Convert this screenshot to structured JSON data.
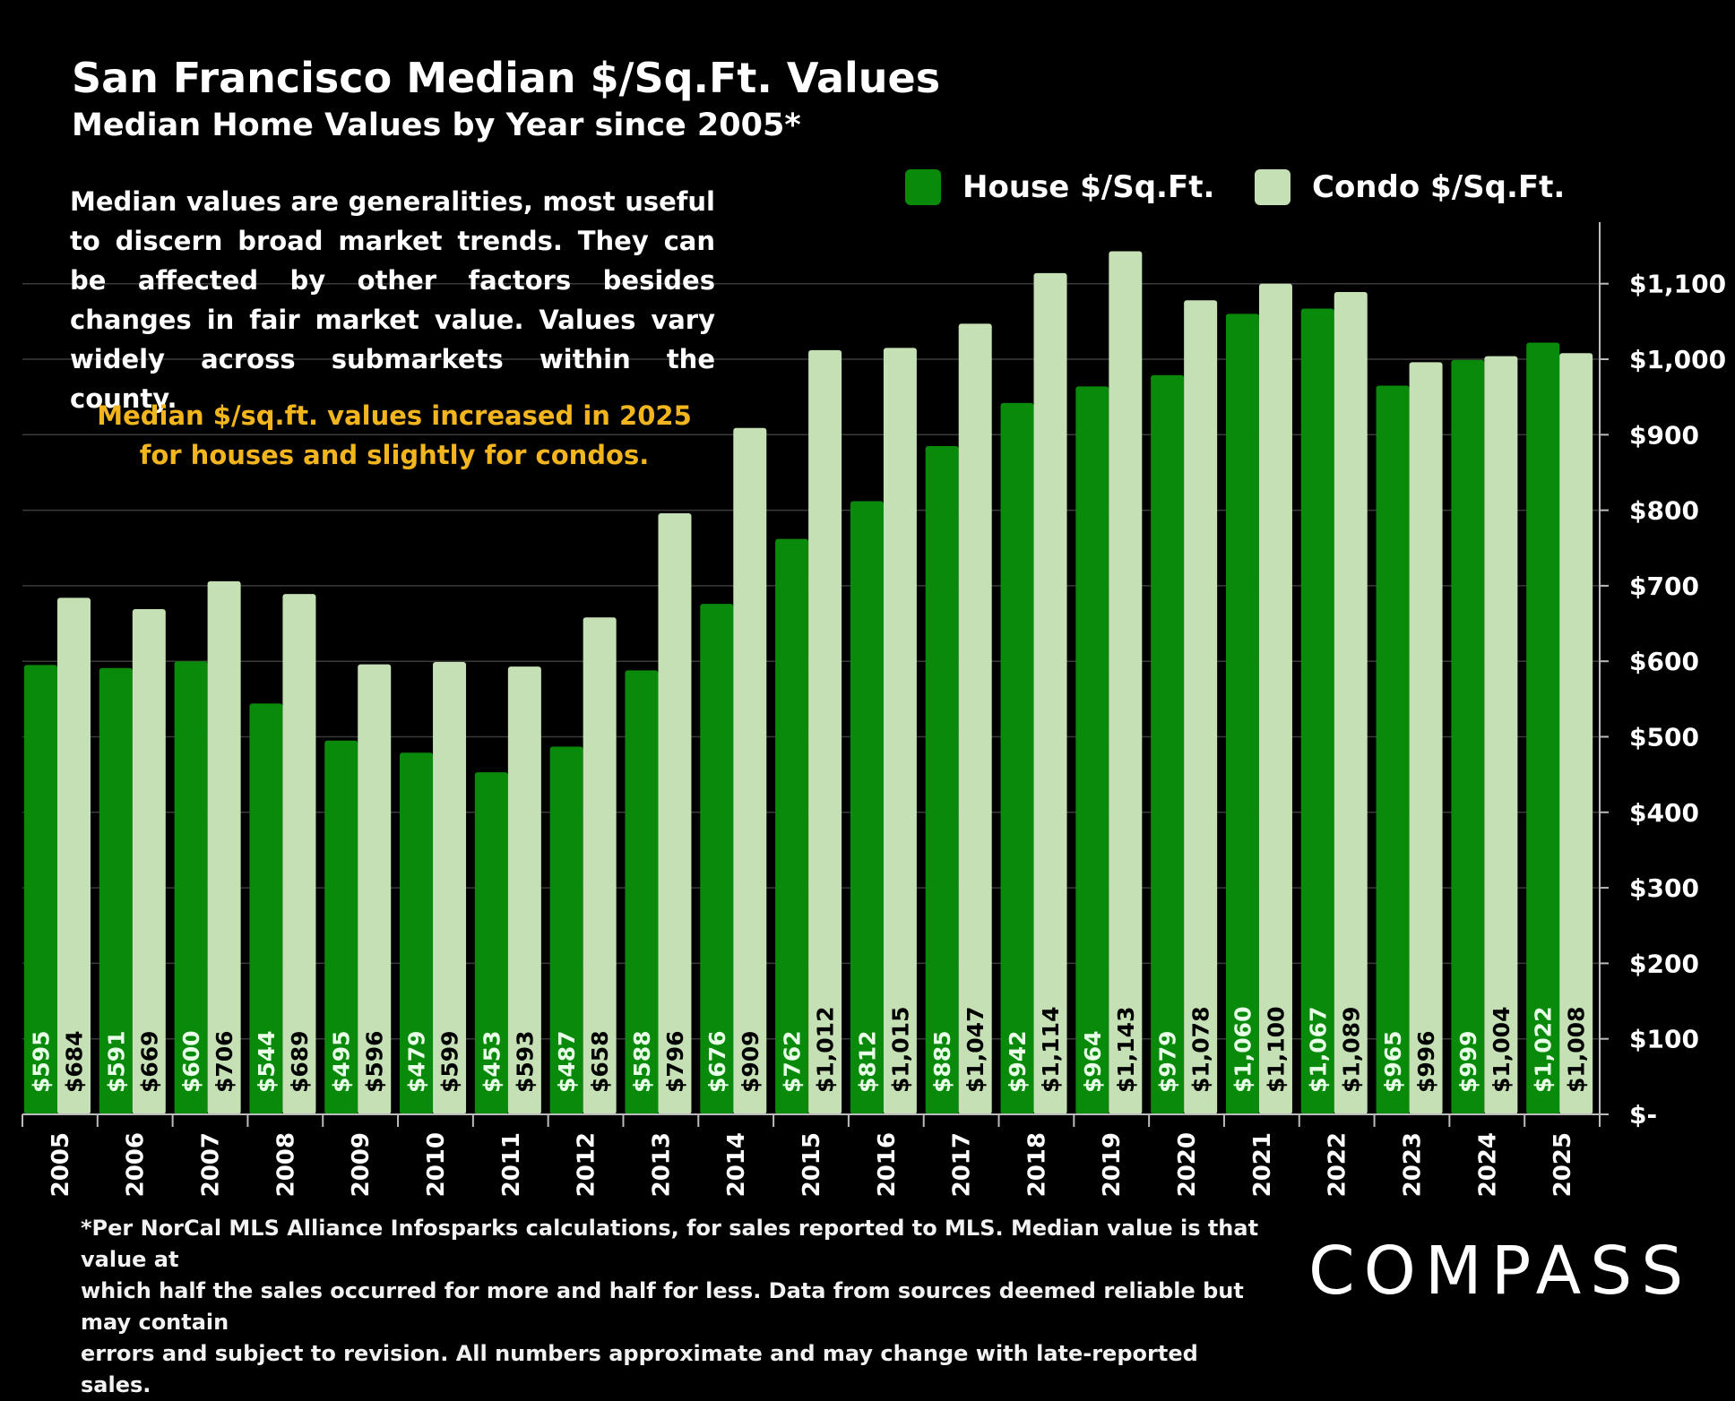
{
  "chart_data": {
    "type": "bar",
    "title": "San Francisco Median $/Sq.Ft. Values",
    "subtitle": "Median Home Values by Year since 2005*",
    "categories": [
      "2005",
      "2006",
      "2007",
      "2008",
      "2009",
      "2010",
      "2011",
      "2012",
      "2013",
      "2014",
      "2015",
      "2016",
      "2017",
      "2018",
      "2019",
      "2020",
      "2021",
      "2022",
      "2023",
      "2024",
      "2025"
    ],
    "series": [
      {
        "name": "House $/Sq.Ft.",
        "color": "#0a8a0a",
        "values": [
          595,
          591,
          600,
          544,
          495,
          479,
          453,
          487,
          588,
          676,
          762,
          812,
          885,
          942,
          964,
          979,
          1060,
          1067,
          965,
          999,
          1022
        ],
        "labels": [
          "$595",
          "$591",
          "$600",
          "$544",
          "$495",
          "$479",
          "$453",
          "$487",
          "$588",
          "$676",
          "$762",
          "$812",
          "$885",
          "$942",
          "$964",
          "$979",
          "$1,060",
          "$1,067",
          "$965",
          "$999",
          "$1,022"
        ]
      },
      {
        "name": "Condo $/Sq.Ft.",
        "color": "#c5e0b4",
        "values": [
          684,
          669,
          706,
          689,
          596,
          599,
          593,
          658,
          796,
          909,
          1012,
          1015,
          1047,
          1114,
          1143,
          1078,
          1100,
          1089,
          996,
          1004,
          1008
        ],
        "labels": [
          "$684",
          "$669",
          "$706",
          "$689",
          "$596",
          "$599",
          "$593",
          "$658",
          "$796",
          "$909",
          "$1,012",
          "$1,015",
          "$1,047",
          "$1,114",
          "$1,143",
          "$1,078",
          "$1,100",
          "$1,089",
          "$996",
          "$1,004",
          "$1,008"
        ]
      }
    ],
    "ylim": [
      0,
      1180
    ],
    "yticks": [
      {
        "value": 0,
        "label": "$-"
      },
      {
        "value": 100,
        "label": "$100"
      },
      {
        "value": 200,
        "label": "$200"
      },
      {
        "value": 300,
        "label": "$300"
      },
      {
        "value": 400,
        "label": "$400"
      },
      {
        "value": 500,
        "label": "$500"
      },
      {
        "value": 600,
        "label": "$600"
      },
      {
        "value": 700,
        "label": "$700"
      },
      {
        "value": 800,
        "label": "$800"
      },
      {
        "value": 900,
        "label": "$900"
      },
      {
        "value": 1000,
        "label": "$1,000"
      },
      {
        "value": 1100,
        "label": "$1,100"
      }
    ],
    "y_axis_side": "right",
    "grid": true,
    "legend": "top-right"
  },
  "note": "Median values are generalities, most useful to discern broad market trends. They can be affected by other factors besides changes in fair market value. Values vary widely across submarkets within the county.",
  "highlight_line1": "Median $/sq.ft. values increased in 2025",
  "highlight_line2": "for houses and slightly for condos.",
  "footnote_line1": "*Per NorCal MLS Alliance Infosparks calculations, for sales reported to MLS. Median value is that value at",
  "footnote_line2": "which half the sales occurred for more and half for less. Data from sources deemed reliable but may contain",
  "footnote_line3": "errors and subject to revision. All numbers approximate and may change with late-reported sales.",
  "logo_text": "COMPASS",
  "colors": {
    "house": "#0a8a0a",
    "condo": "#c5e0b4",
    "highlight": "#f2b51d",
    "background": "#000000"
  }
}
